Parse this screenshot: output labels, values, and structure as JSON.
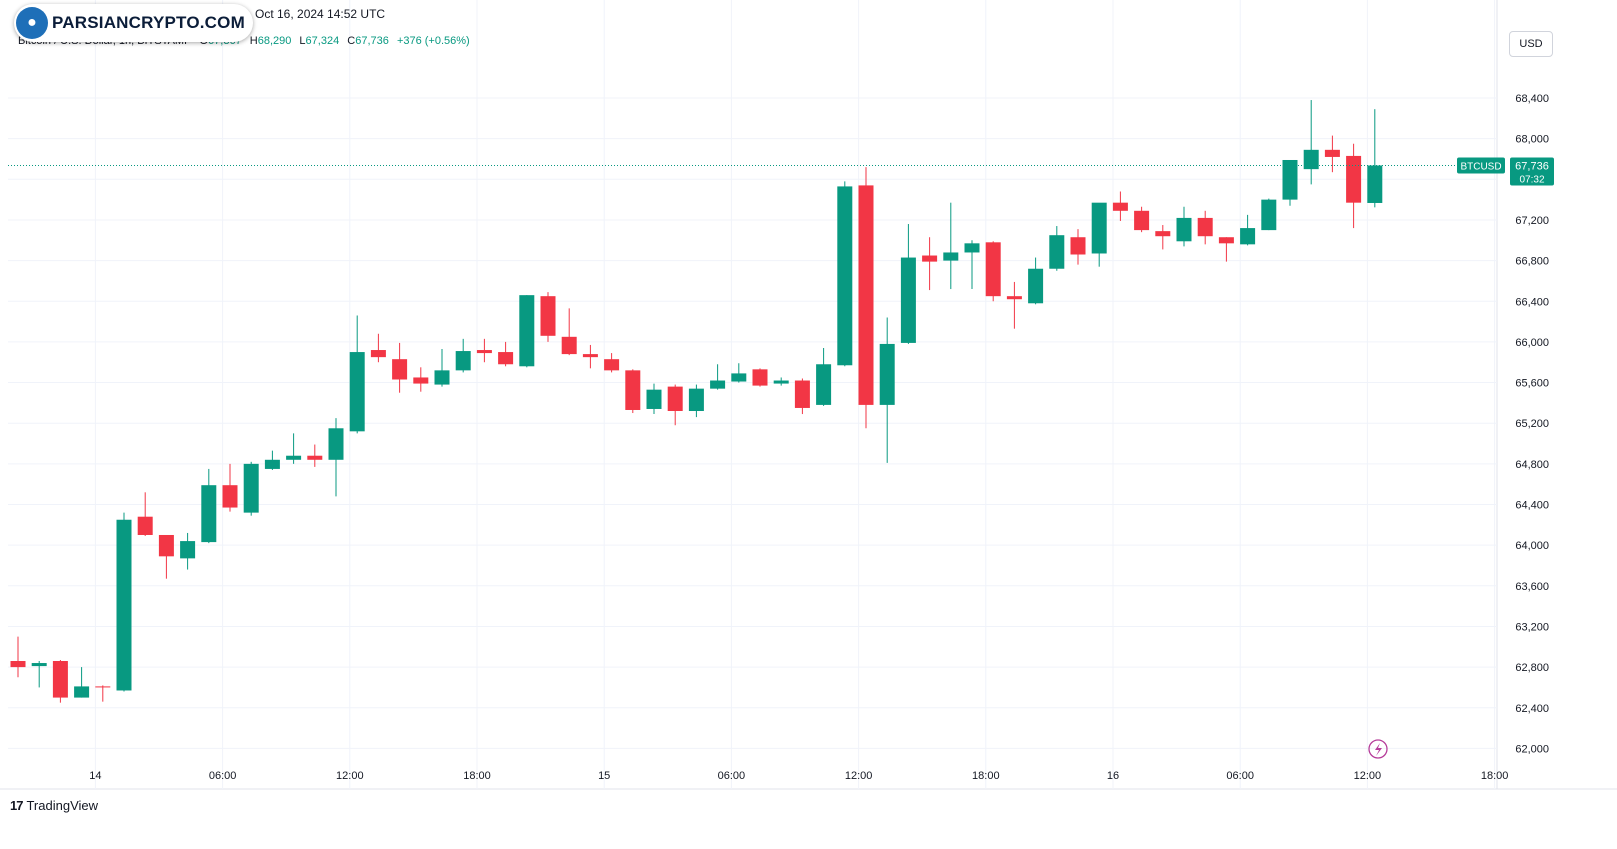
{
  "header": {
    "source": "Bitcoin / U.S. Dollar, 1h, BITSTAMP",
    "published": "Oct 16, 2024 14:52 UTC",
    "ohlc": {
      "o_label": "O",
      "o": "67,367",
      "h_label": "H",
      "h": "68,290",
      "l_label": "L",
      "l": "67,324",
      "c_label": "C",
      "c": "67,736",
      "change": "+376 (+0.56%)"
    }
  },
  "watermark": {
    "text": "PARSIANCRYPTO.COM"
  },
  "currency_button": "USD",
  "footer": {
    "brand": "TradingView",
    "mark": "17"
  },
  "price_tag": {
    "symbol": "BTCUSD",
    "price": "67,736",
    "countdown": "07:32"
  },
  "colors": {
    "up": "#089981",
    "down": "#f23645",
    "grid": "#f0f3fa",
    "text": "#131722"
  },
  "chart_data": {
    "type": "candlestick",
    "title": "Bitcoin / U.S. Dollar, 1h, BITSTAMP",
    "ylabel": "",
    "xlabel": "",
    "ylim": [
      61850,
      68700
    ],
    "yticks": [
      62000,
      62400,
      62800,
      63200,
      63600,
      64000,
      64400,
      64800,
      65200,
      65600,
      66000,
      66400,
      66800,
      67200,
      67600,
      68000,
      68400
    ],
    "xticks": [
      {
        "label": "14",
        "index": 2
      },
      {
        "label": "06:00",
        "index": 8
      },
      {
        "label": "12:00",
        "index": 14
      },
      {
        "label": "18:00",
        "index": 20
      },
      {
        "label": "15",
        "index": 26
      },
      {
        "label": "06:00",
        "index": 32
      },
      {
        "label": "12:00",
        "index": 38
      },
      {
        "label": "18:00",
        "index": 44
      },
      {
        "label": "16",
        "index": 50
      },
      {
        "label": "06:00",
        "index": 56
      },
      {
        "label": "12:00",
        "index": 62
      },
      {
        "label": "18:00",
        "index": 68
      }
    ],
    "last_price": 67736,
    "grid": true,
    "candles": [
      {
        "o": 62860,
        "h": 63100,
        "l": 62700,
        "c": 62800
      },
      {
        "o": 62810,
        "h": 62860,
        "l": 62600,
        "c": 62840
      },
      {
        "o": 62860,
        "h": 62870,
        "l": 62450,
        "c": 62500
      },
      {
        "o": 62500,
        "h": 62800,
        "l": 62500,
        "c": 62610
      },
      {
        "o": 62610,
        "h": 62620,
        "l": 62460,
        "c": 62600
      },
      {
        "o": 62570,
        "h": 64320,
        "l": 62560,
        "c": 64250
      },
      {
        "o": 64280,
        "h": 64520,
        "l": 64090,
        "c": 64100
      },
      {
        "o": 64100,
        "h": 64100,
        "l": 63670,
        "c": 63890
      },
      {
        "o": 63870,
        "h": 64120,
        "l": 63760,
        "c": 64040
      },
      {
        "o": 64030,
        "h": 64750,
        "l": 64020,
        "c": 64590
      },
      {
        "o": 64590,
        "h": 64800,
        "l": 64330,
        "c": 64370
      },
      {
        "o": 64320,
        "h": 64820,
        "l": 64290,
        "c": 64800
      },
      {
        "o": 64750,
        "h": 64930,
        "l": 64740,
        "c": 64840
      },
      {
        "o": 64840,
        "h": 65100,
        "l": 64800,
        "c": 64880
      },
      {
        "o": 64880,
        "h": 64990,
        "l": 64770,
        "c": 64840
      },
      {
        "o": 64840,
        "h": 65250,
        "l": 64480,
        "c": 65150
      },
      {
        "o": 65120,
        "h": 66260,
        "l": 65100,
        "c": 65900
      },
      {
        "o": 65920,
        "h": 66080,
        "l": 65800,
        "c": 65850
      },
      {
        "o": 65830,
        "h": 65990,
        "l": 65500,
        "c": 65630
      },
      {
        "o": 65650,
        "h": 65750,
        "l": 65510,
        "c": 65590
      },
      {
        "o": 65580,
        "h": 65930,
        "l": 65560,
        "c": 65720
      },
      {
        "o": 65720,
        "h": 66030,
        "l": 65700,
        "c": 65910
      },
      {
        "o": 65920,
        "h": 66030,
        "l": 65800,
        "c": 65890
      },
      {
        "o": 65900,
        "h": 66000,
        "l": 65760,
        "c": 65780
      },
      {
        "o": 65760,
        "h": 66460,
        "l": 65750,
        "c": 66460
      },
      {
        "o": 66450,
        "h": 66490,
        "l": 66000,
        "c": 66060
      },
      {
        "o": 66050,
        "h": 66330,
        "l": 65870,
        "c": 65880
      },
      {
        "o": 65880,
        "h": 65970,
        "l": 65740,
        "c": 65850
      },
      {
        "o": 65830,
        "h": 65890,
        "l": 65700,
        "c": 65720
      },
      {
        "o": 65720,
        "h": 65730,
        "l": 65300,
        "c": 65330
      },
      {
        "o": 65340,
        "h": 65590,
        "l": 65290,
        "c": 65530
      },
      {
        "o": 65560,
        "h": 65580,
        "l": 65180,
        "c": 65320
      },
      {
        "o": 65320,
        "h": 65580,
        "l": 65260,
        "c": 65540
      },
      {
        "o": 65540,
        "h": 65780,
        "l": 65530,
        "c": 65620
      },
      {
        "o": 65610,
        "h": 65790,
        "l": 65600,
        "c": 65690
      },
      {
        "o": 65730,
        "h": 65740,
        "l": 65560,
        "c": 65570
      },
      {
        "o": 65590,
        "h": 65650,
        "l": 65570,
        "c": 65620
      },
      {
        "o": 65620,
        "h": 65640,
        "l": 65290,
        "c": 65350
      },
      {
        "o": 65380,
        "h": 65940,
        "l": 65370,
        "c": 65780
      },
      {
        "o": 65770,
        "h": 67580,
        "l": 65760,
        "c": 67530
      },
      {
        "o": 67540,
        "h": 67720,
        "l": 65150,
        "c": 65380
      },
      {
        "o": 65380,
        "h": 66240,
        "l": 64810,
        "c": 65980
      },
      {
        "o": 65990,
        "h": 67160,
        "l": 65980,
        "c": 66830
      },
      {
        "o": 66850,
        "h": 67030,
        "l": 66510,
        "c": 66790
      },
      {
        "o": 66800,
        "h": 67370,
        "l": 66520,
        "c": 66880
      },
      {
        "o": 66880,
        "h": 67000,
        "l": 66520,
        "c": 66970
      },
      {
        "o": 66980,
        "h": 66990,
        "l": 66400,
        "c": 66450
      },
      {
        "o": 66450,
        "h": 66590,
        "l": 66130,
        "c": 66420
      },
      {
        "o": 66380,
        "h": 66830,
        "l": 66370,
        "c": 66720
      },
      {
        "o": 66720,
        "h": 67140,
        "l": 66700,
        "c": 67050
      },
      {
        "o": 67030,
        "h": 67110,
        "l": 66760,
        "c": 66860
      },
      {
        "o": 66870,
        "h": 67330,
        "l": 66740,
        "c": 67370
      },
      {
        "o": 67370,
        "h": 67480,
        "l": 67190,
        "c": 67290
      },
      {
        "o": 67290,
        "h": 67330,
        "l": 67080,
        "c": 67100
      },
      {
        "o": 67090,
        "h": 67150,
        "l": 66910,
        "c": 67040
      },
      {
        "o": 66990,
        "h": 67330,
        "l": 66940,
        "c": 67220
      },
      {
        "o": 67220,
        "h": 67290,
        "l": 66960,
        "c": 67040
      },
      {
        "o": 67030,
        "h": 67030,
        "l": 66790,
        "c": 66970
      },
      {
        "o": 66960,
        "h": 67250,
        "l": 66950,
        "c": 67120
      },
      {
        "o": 67100,
        "h": 67410,
        "l": 67100,
        "c": 67400
      },
      {
        "o": 67400,
        "h": 67750,
        "l": 67340,
        "c": 67790
      },
      {
        "o": 67700,
        "h": 68380,
        "l": 67550,
        "c": 67890
      },
      {
        "o": 67890,
        "h": 68030,
        "l": 67670,
        "c": 67820
      },
      {
        "o": 67830,
        "h": 67950,
        "l": 67120,
        "c": 67370
      },
      {
        "o": 67367,
        "h": 68290,
        "l": 67324,
        "c": 67736
      }
    ]
  }
}
